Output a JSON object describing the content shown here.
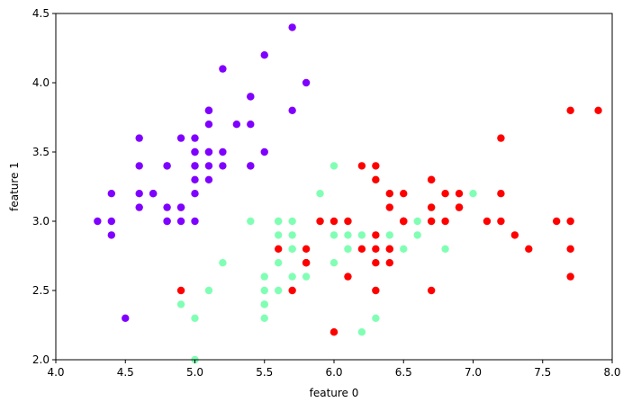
{
  "chart_data": {
    "type": "scatter",
    "xlabel": "feature 0",
    "ylabel": "feature 1",
    "xlim": [
      4.0,
      8.0
    ],
    "ylim": [
      2.0,
      4.5
    ],
    "xticks": [
      "4.0",
      "4.5",
      "5.0",
      "5.5",
      "6.0",
      "6.5",
      "7.0",
      "7.5",
      "8.0"
    ],
    "yticks": [
      "2.0",
      "2.5",
      "3.0",
      "3.5",
      "4.0",
      "4.5"
    ],
    "grid": false,
    "legend": "none",
    "series": [
      {
        "color": "#8000ff",
        "points": [
          [
            5.1,
            3.5
          ],
          [
            4.9,
            3.0
          ],
          [
            4.7,
            3.2
          ],
          [
            4.6,
            3.1
          ],
          [
            5.0,
            3.6
          ],
          [
            5.4,
            3.9
          ],
          [
            4.6,
            3.4
          ],
          [
            5.0,
            3.4
          ],
          [
            4.4,
            2.9
          ],
          [
            4.9,
            3.1
          ],
          [
            5.4,
            3.7
          ],
          [
            4.8,
            3.4
          ],
          [
            4.8,
            3.0
          ],
          [
            4.3,
            3.0
          ],
          [
            5.8,
            4.0
          ],
          [
            5.7,
            4.4
          ],
          [
            5.4,
            3.9
          ],
          [
            5.1,
            3.5
          ],
          [
            5.7,
            3.8
          ],
          [
            5.1,
            3.8
          ],
          [
            5.4,
            3.4
          ],
          [
            5.1,
            3.7
          ],
          [
            4.6,
            3.6
          ],
          [
            5.1,
            3.3
          ],
          [
            4.8,
            3.4
          ],
          [
            5.0,
            3.0
          ],
          [
            5.0,
            3.4
          ],
          [
            5.2,
            3.5
          ],
          [
            5.2,
            3.4
          ],
          [
            4.7,
            3.2
          ],
          [
            4.8,
            3.1
          ],
          [
            5.4,
            3.4
          ],
          [
            5.2,
            4.1
          ],
          [
            5.5,
            4.2
          ],
          [
            4.9,
            3.1
          ],
          [
            5.0,
            3.2
          ],
          [
            5.5,
            3.5
          ],
          [
            4.9,
            3.6
          ],
          [
            4.4,
            3.0
          ],
          [
            5.1,
            3.4
          ],
          [
            5.0,
            3.5
          ],
          [
            4.5,
            2.3
          ],
          [
            4.4,
            3.2
          ],
          [
            5.0,
            3.5
          ],
          [
            5.1,
            3.8
          ],
          [
            4.8,
            3.0
          ],
          [
            5.1,
            3.8
          ],
          [
            4.6,
            3.2
          ],
          [
            5.3,
            3.7
          ],
          [
            5.0,
            3.3
          ]
        ]
      },
      {
        "color": "#80ffb4",
        "points": [
          [
            7.0,
            3.2
          ],
          [
            6.4,
            3.2
          ],
          [
            6.9,
            3.1
          ],
          [
            5.5,
            2.3
          ],
          [
            6.5,
            2.8
          ],
          [
            5.7,
            2.8
          ],
          [
            6.3,
            3.3
          ],
          [
            4.9,
            2.4
          ],
          [
            6.6,
            2.9
          ],
          [
            5.2,
            2.7
          ],
          [
            5.0,
            2.0
          ],
          [
            5.9,
            3.0
          ],
          [
            6.0,
            2.2
          ],
          [
            6.1,
            2.9
          ],
          [
            5.6,
            2.9
          ],
          [
            6.7,
            3.1
          ],
          [
            5.6,
            3.0
          ],
          [
            5.8,
            2.7
          ],
          [
            6.2,
            2.2
          ],
          [
            5.6,
            2.5
          ],
          [
            5.9,
            3.2
          ],
          [
            6.1,
            2.8
          ],
          [
            6.3,
            2.5
          ],
          [
            6.1,
            2.8
          ],
          [
            6.4,
            2.9
          ],
          [
            6.6,
            3.0
          ],
          [
            6.8,
            2.8
          ],
          [
            6.7,
            3.0
          ],
          [
            6.0,
            2.9
          ],
          [
            5.7,
            2.6
          ],
          [
            5.5,
            2.4
          ],
          [
            5.5,
            2.4
          ],
          [
            5.8,
            2.7
          ],
          [
            6.0,
            2.7
          ],
          [
            5.4,
            3.0
          ],
          [
            6.0,
            3.4
          ],
          [
            6.7,
            3.1
          ],
          [
            6.3,
            2.3
          ],
          [
            5.6,
            3.0
          ],
          [
            5.5,
            2.5
          ],
          [
            5.5,
            2.6
          ],
          [
            6.1,
            3.0
          ],
          [
            5.8,
            2.6
          ],
          [
            5.0,
            2.3
          ],
          [
            5.6,
            2.7
          ],
          [
            5.7,
            3.0
          ],
          [
            5.7,
            2.9
          ],
          [
            6.2,
            2.9
          ],
          [
            5.1,
            2.5
          ],
          [
            5.7,
            2.8
          ]
        ]
      },
      {
        "color": "#ff0000",
        "points": [
          [
            6.3,
            3.3
          ],
          [
            5.8,
            2.7
          ],
          [
            7.1,
            3.0
          ],
          [
            6.3,
            2.9
          ],
          [
            6.5,
            3.0
          ],
          [
            7.6,
            3.0
          ],
          [
            4.9,
            2.5
          ],
          [
            7.3,
            2.9
          ],
          [
            6.7,
            2.5
          ],
          [
            7.2,
            3.6
          ],
          [
            6.5,
            3.2
          ],
          [
            6.4,
            2.7
          ],
          [
            6.8,
            3.0
          ],
          [
            5.7,
            2.5
          ],
          [
            5.8,
            2.8
          ],
          [
            6.4,
            3.2
          ],
          [
            6.5,
            3.0
          ],
          [
            7.7,
            3.8
          ],
          [
            7.7,
            2.6
          ],
          [
            6.0,
            2.2
          ],
          [
            6.9,
            3.2
          ],
          [
            5.6,
            2.8
          ],
          [
            7.7,
            2.8
          ],
          [
            6.3,
            2.7
          ],
          [
            6.7,
            3.3
          ],
          [
            7.2,
            3.2
          ],
          [
            6.2,
            2.8
          ],
          [
            6.1,
            3.0
          ],
          [
            6.4,
            2.8
          ],
          [
            7.2,
            3.0
          ],
          [
            7.4,
            2.8
          ],
          [
            7.9,
            3.8
          ],
          [
            6.4,
            2.8
          ],
          [
            6.3,
            2.8
          ],
          [
            6.1,
            2.6
          ],
          [
            7.7,
            3.0
          ],
          [
            6.3,
            3.4
          ],
          [
            6.4,
            3.1
          ],
          [
            6.0,
            3.0
          ],
          [
            6.9,
            3.1
          ],
          [
            6.7,
            3.1
          ],
          [
            6.9,
            3.1
          ],
          [
            5.8,
            2.7
          ],
          [
            6.8,
            3.2
          ],
          [
            6.7,
            3.3
          ],
          [
            6.7,
            3.0
          ],
          [
            6.3,
            2.5
          ],
          [
            6.5,
            3.0
          ],
          [
            6.2,
            3.4
          ],
          [
            5.9,
            3.0
          ]
        ]
      }
    ]
  }
}
